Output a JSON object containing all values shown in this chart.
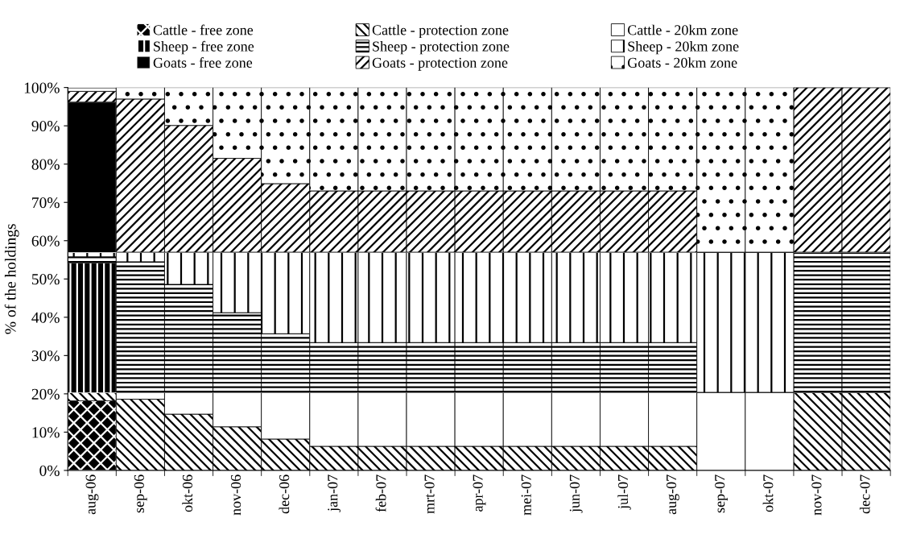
{
  "chart_data": {
    "type": "bar",
    "stacked": true,
    "ylabel": "% of the holdings",
    "categories": [
      "aug-06",
      "sep-06",
      "okt-06",
      "nov-06",
      "dec-06",
      "jan-07",
      "feb-07",
      "mrt-07",
      "apr-07",
      "mei-07",
      "jun-07",
      "jul-07",
      "aug-07",
      "sep-07",
      "okt-07",
      "nov-07",
      "dec-07"
    ],
    "series": [
      {
        "name": "Cattle - free zone",
        "color": "#ffffff",
        "values": [
          18.2,
          0,
          0,
          0,
          0,
          0,
          0,
          0,
          0,
          0,
          0,
          0,
          0,
          0,
          0,
          0,
          0
        ]
      },
      {
        "name": "Cattle - protection zone",
        "color": "#000000",
        "values": [
          2.1,
          18.6,
          14.7,
          11.4,
          8.2,
          6.3,
          6.3,
          6.3,
          6.3,
          6.3,
          6.3,
          6.3,
          6.3,
          0,
          0,
          20.4,
          20.4
        ]
      },
      {
        "name": "Cattle - 20km zone",
        "color": "#ffffff",
        "values": [
          0,
          1.8,
          5.7,
          9.0,
          12.2,
          14.1,
          14.1,
          14.1,
          14.1,
          14.1,
          14.1,
          14.1,
          14.1,
          20.4,
          20.4,
          0,
          0
        ]
      },
      {
        "name": "Sheep - free zone",
        "color": "#ffffff",
        "values": [
          33.9,
          0,
          0,
          0,
          0,
          0,
          0,
          0,
          0,
          0,
          0,
          0,
          0,
          0,
          0,
          0,
          0
        ]
      },
      {
        "name": "Sheep - protection zone",
        "color": "#000000",
        "values": [
          1.6,
          34.1,
          28.2,
          20.8,
          15.3,
          13.0,
          13.0,
          13.0,
          13.0,
          13.0,
          13.0,
          13.0,
          13.0,
          0,
          0,
          36.6,
          36.6
        ]
      },
      {
        "name": "Sheep - 20km zone",
        "color": "#000000",
        "values": [
          1.1,
          2.5,
          8.4,
          15.8,
          21.3,
          23.6,
          23.6,
          23.6,
          23.6,
          23.6,
          23.6,
          23.6,
          23.6,
          36.6,
          36.6,
          0,
          0
        ]
      },
      {
        "name": "Goats - free zone",
        "color": "#000000",
        "values": [
          39.3,
          0,
          0,
          0,
          0,
          0,
          0,
          0,
          0,
          0,
          0,
          0,
          0,
          0,
          0,
          0,
          0
        ]
      },
      {
        "name": "Goats - protection zone",
        "color": "#000000",
        "values": [
          2.8,
          40.0,
          33.1,
          24.5,
          17.9,
          16.0,
          16.0,
          16.0,
          16.0,
          16.0,
          16.0,
          16.0,
          16.0,
          0,
          0,
          43.0,
          43.0
        ]
      },
      {
        "name": "Goats - 20km zone",
        "color": "#000000",
        "values": [
          0.9,
          3.0,
          9.9,
          18.5,
          25.1,
          27.0,
          27.0,
          27.0,
          27.0,
          27.0,
          27.0,
          27.0,
          27.0,
          43.0,
          43.0,
          0,
          0
        ]
      }
    ],
    "ylim": [
      0,
      100
    ],
    "yticks": [
      {
        "value": 0,
        "label": "0%"
      },
      {
        "value": 10,
        "label": "10%"
      },
      {
        "value": 20,
        "label": "20%"
      },
      {
        "value": 30,
        "label": "30%"
      },
      {
        "value": 40,
        "label": "40%"
      },
      {
        "value": 50,
        "label": "50%"
      },
      {
        "value": 60,
        "label": "60%"
      },
      {
        "value": 70,
        "label": "70%"
      },
      {
        "value": 80,
        "label": "80%"
      },
      {
        "value": 90,
        "label": "90%"
      },
      {
        "value": 100,
        "label": "100%"
      }
    ],
    "grid": false,
    "legend": "top"
  }
}
